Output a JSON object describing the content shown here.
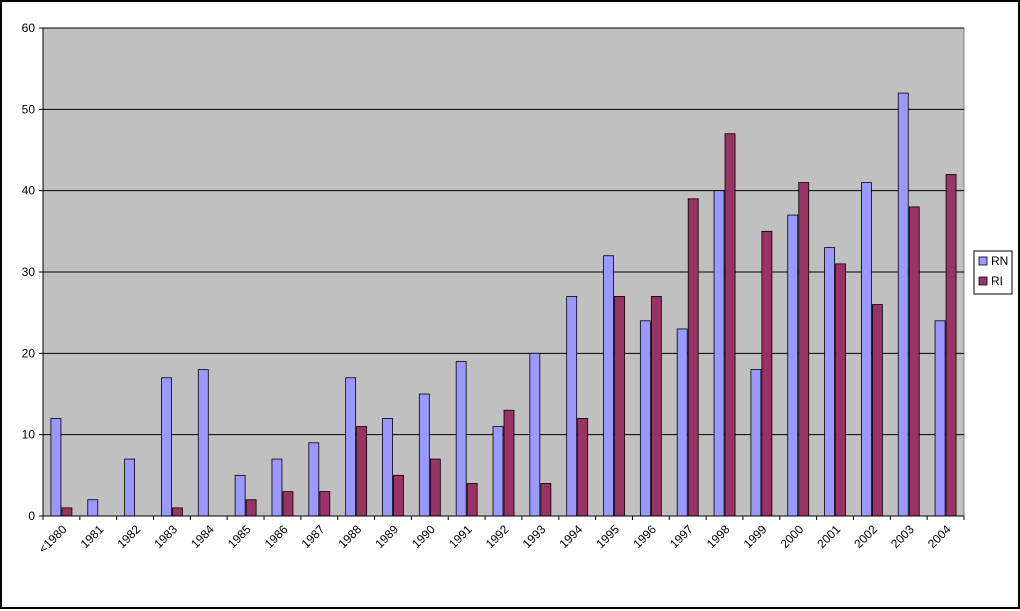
{
  "chart_data": {
    "type": "bar",
    "categories": [
      "<1980",
      "1981",
      "1982",
      "1983",
      "1984",
      "1985",
      "1986",
      "1987",
      "1988",
      "1989",
      "1990",
      "1991",
      "1992",
      "1993",
      "1994",
      "1995",
      "1996",
      "1997",
      "1998",
      "1999",
      "2000",
      "2001",
      "2002",
      "2003",
      "2004"
    ],
    "series": [
      {
        "name": "RN",
        "color": "#9999FF",
        "values": [
          12,
          2,
          7,
          17,
          18,
          5,
          7,
          9,
          17,
          12,
          15,
          19,
          11,
          20,
          27,
          32,
          24,
          23,
          40,
          18,
          37,
          33,
          41,
          52,
          24
        ]
      },
      {
        "name": "RI",
        "color": "#993366",
        "values": [
          1,
          0,
          0,
          1,
          0,
          2,
          3,
          3,
          11,
          5,
          7,
          4,
          13,
          4,
          12,
          27,
          27,
          39,
          47,
          35,
          41,
          31,
          26,
          38,
          42
        ]
      }
    ],
    "yticks": [
      0,
      10,
      20,
      30,
      40,
      50,
      60
    ],
    "ylim": [
      0,
      60
    ],
    "grid": true,
    "legend": "right",
    "plot_background": "#C0C0C0"
  }
}
